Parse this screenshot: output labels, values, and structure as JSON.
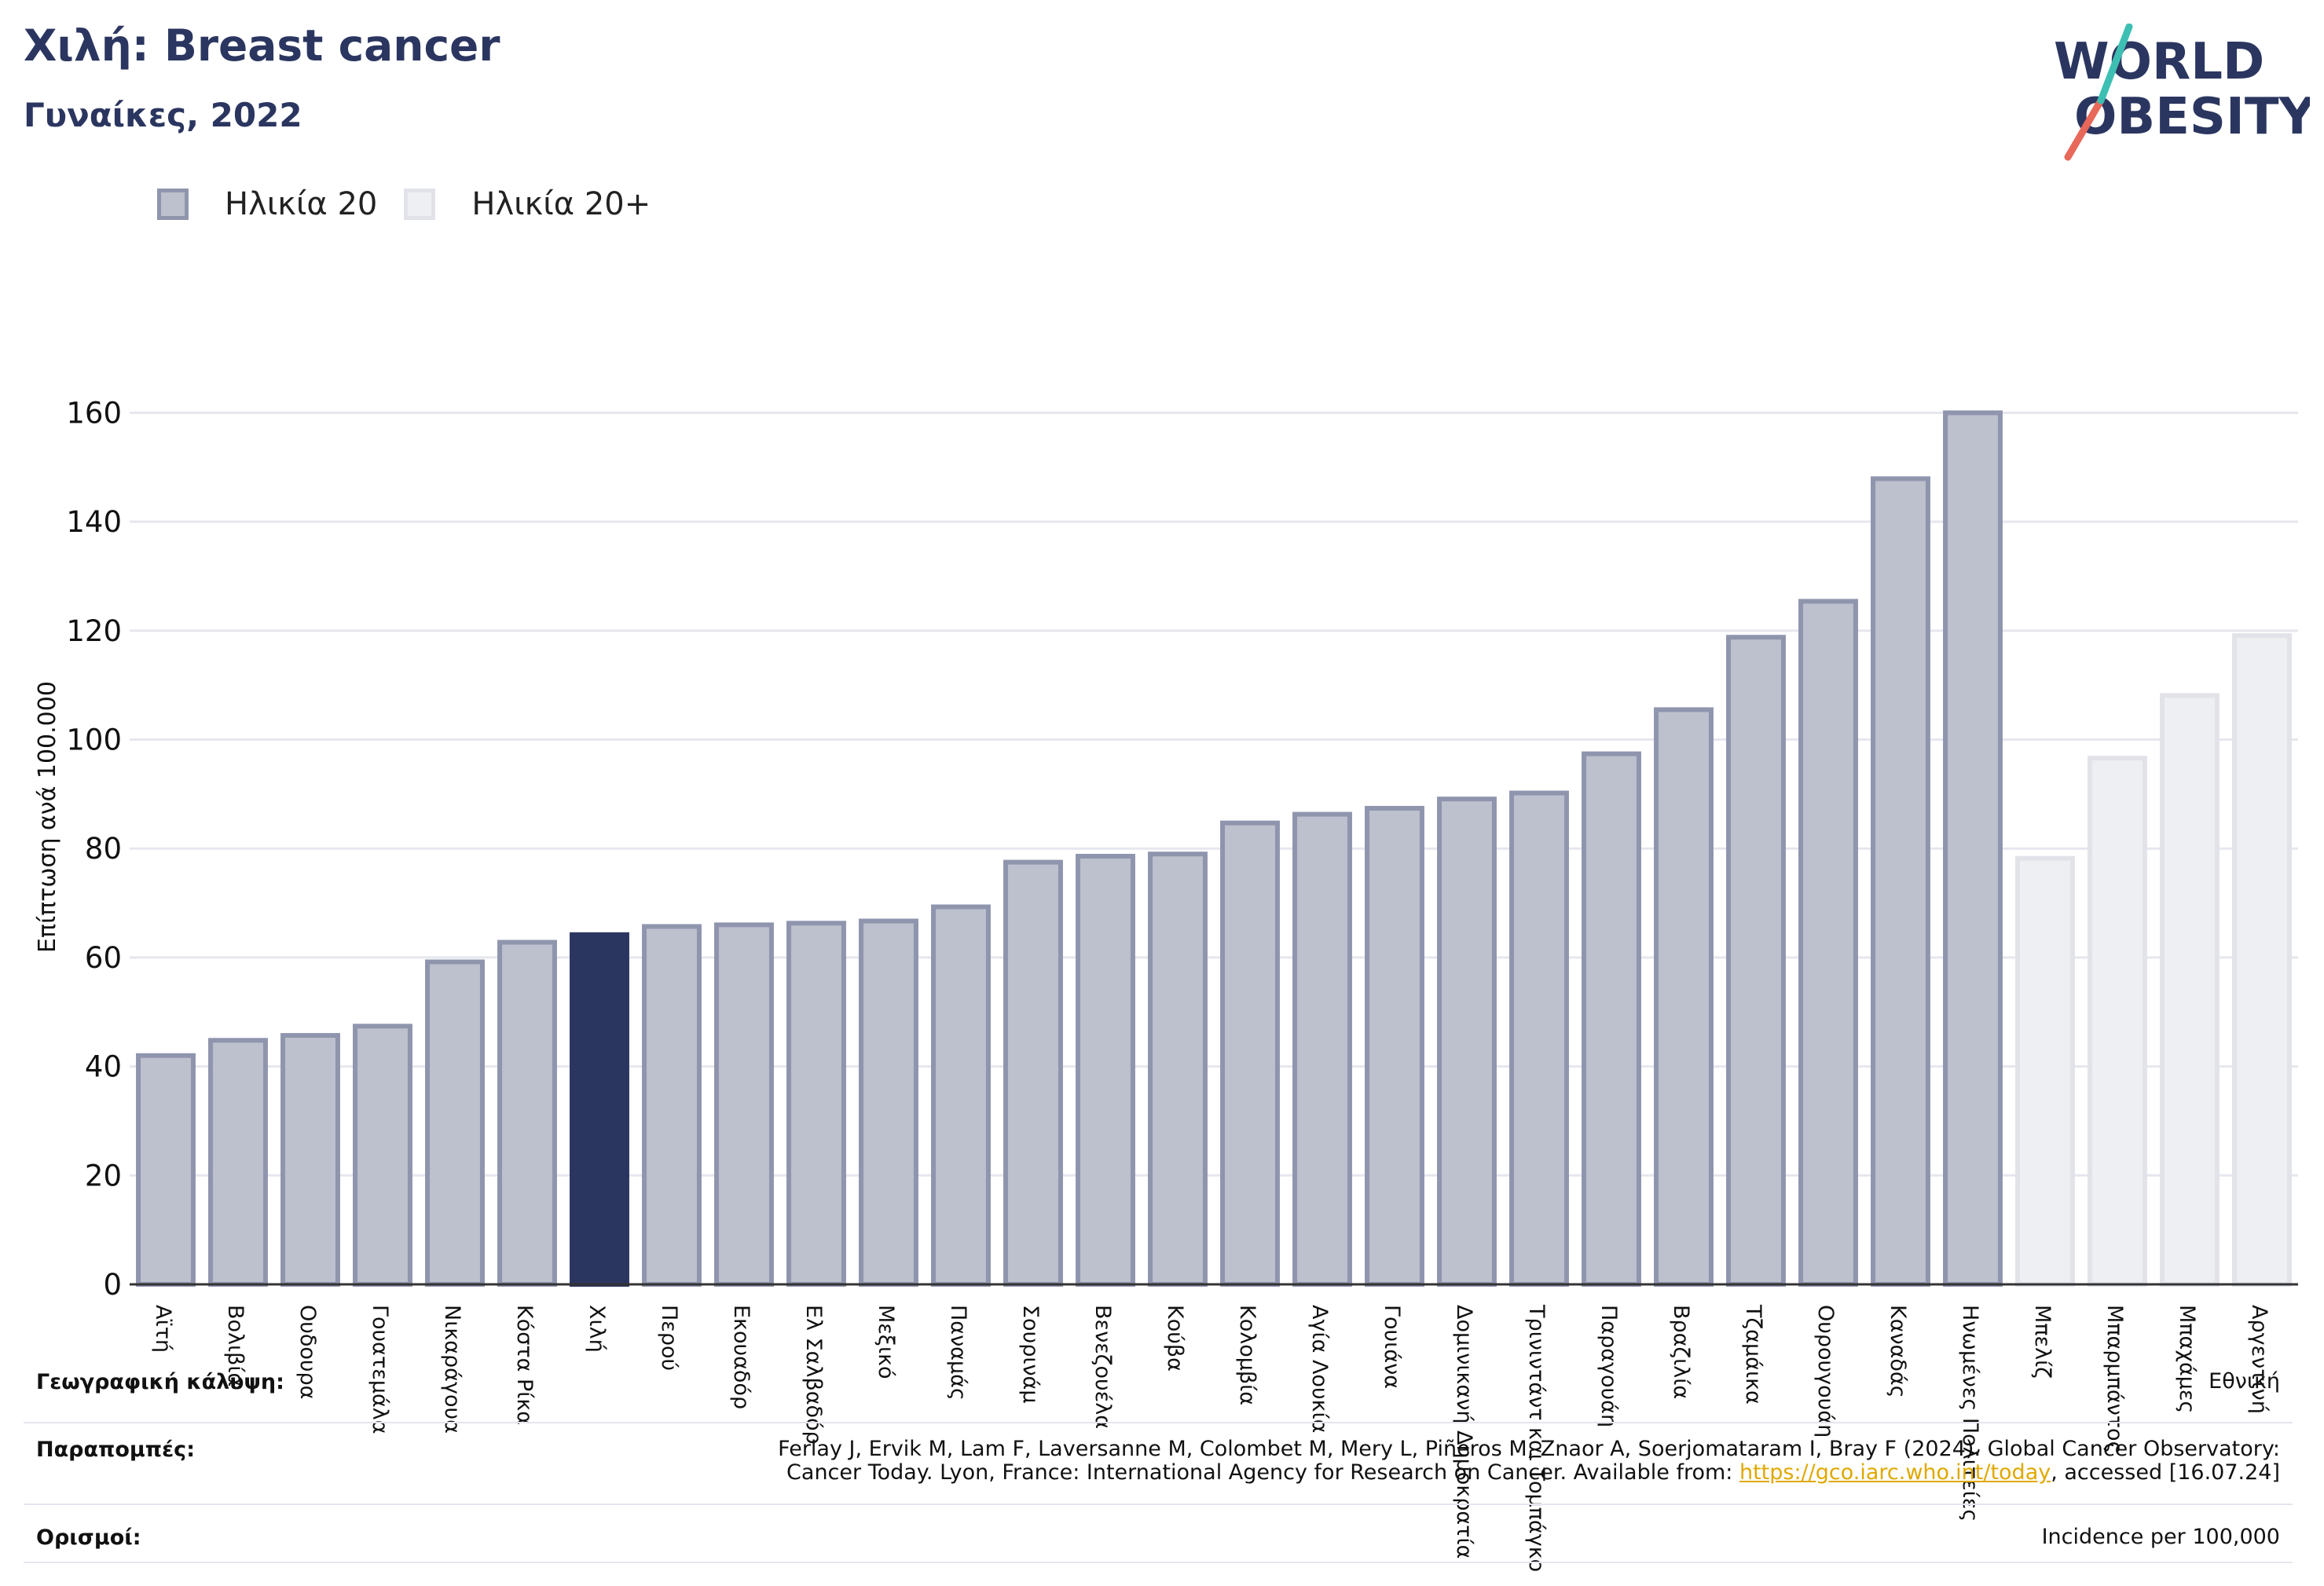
{
  "header": {
    "title": "Χιλή: Breast cancer",
    "subtitle": "Γυναίκες, 2022"
  },
  "logo": {
    "line1": "WORLD",
    "line2": "OBESITY"
  },
  "legend": [
    {
      "label": "Ηλικία 20"
    },
    {
      "label": "Ηλικία 20+"
    }
  ],
  "colors": {
    "series1_fill": "#bdc0cd",
    "series1_stroke": "#9095ae",
    "series2_fill": "#eeeff3",
    "series2_stroke": "#e2e3e9",
    "highlight": "#2b3660",
    "title": "#2b3660",
    "logo_accent_red": "#e8685a",
    "logo_accent_teal": "#3dbfb3",
    "link": "#e0a800"
  },
  "chart_data": {
    "type": "bar",
    "ylabel": "Επίπτωση ανά 100.000",
    "xlabel": "",
    "ylim": [
      0,
      168
    ],
    "yticks": [
      0,
      20,
      40,
      60,
      80,
      100,
      120,
      140,
      160
    ],
    "grid": true,
    "legend_position": "top-left",
    "highlight_category": "Χιλή",
    "categories": [
      "Αϊτή",
      "Βολιβία",
      "Ουδουρα",
      "Γουατεμάλα",
      "Νικαράγουα",
      "Κόστα Ρίκα",
      "Χιλή",
      "Περού",
      "Εκουαδόρ",
      "Ελ Σαλβαδόρ",
      "Μεξικό",
      "Παναμάς",
      "Σουρινάμ",
      "Βενεζουέλα",
      "Κούβα",
      "Κολομβία",
      "Αγία Λουκία",
      "Γουιάνα",
      "Δομινικανή Δημοκρατία",
      "Τρινιντάντ και Τομπάγκο",
      "Παραγουάη",
      "Βραζιλία",
      "Τζαμάικα",
      "Ουρουγουάη",
      "Καναδάς",
      "Ηνωμένες Πολιτείες",
      "Μπελίζ",
      "Μπαρμπάντος",
      "Μπαχάμες",
      "Αργεντινή"
    ],
    "series": [
      {
        "name": "Ηλικία 20",
        "values": [
          42.0,
          44.8,
          45.7,
          47.4,
          59.2,
          62.8,
          64.2,
          65.7,
          66.0,
          66.3,
          66.7,
          69.3,
          77.5,
          78.6,
          79.0,
          84.7,
          86.3,
          87.4,
          89.1,
          90.2,
          97.4,
          105.5,
          118.8,
          125.4,
          147.9,
          160.0,
          null,
          null,
          null,
          null
        ]
      },
      {
        "name": "Ηλικία 20+",
        "values": [
          null,
          null,
          null,
          null,
          null,
          null,
          null,
          null,
          null,
          null,
          null,
          null,
          null,
          null,
          null,
          null,
          null,
          null,
          null,
          null,
          null,
          null,
          null,
          null,
          null,
          null,
          78.2,
          96.6,
          108.1,
          119.1
        ]
      }
    ]
  },
  "footer": {
    "geo_label": "Γεωγραφική κάλυψη:",
    "geo_value": "Εθνική",
    "refs_label": "Παραπομπές:",
    "refs_line1": "Ferlay J, Ervik M, Lam F, Laversanne M, Colombet M, Mery L, Piñeros M, Znaor A, Soerjomataram I, Bray F (2024). Global Cancer Observatory:",
    "refs_line2_pre": "Cancer Today. Lyon, France: International Agency for Research on Cancer. Available from: ",
    "refs_link": "https://gco.iarc.who.int/today",
    "refs_line2_post": ", accessed [16.07.24]",
    "defs_label": "Ορισμοί:",
    "defs_value": "Incidence per 100,000"
  }
}
